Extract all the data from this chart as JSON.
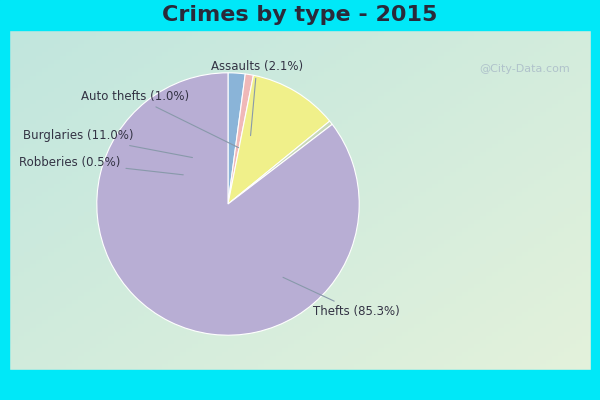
{
  "title": "Crimes by type - 2015",
  "slices": [
    {
      "label": "Thefts",
      "pct": 85.3,
      "color": "#b8aed4"
    },
    {
      "label": "Burglaries",
      "pct": 11.0,
      "color": "#f0f08a"
    },
    {
      "label": "Assaults",
      "pct": 2.1,
      "color": "#8ab4d8"
    },
    {
      "label": "Auto thefts",
      "pct": 1.0,
      "color": "#f0b8b8"
    },
    {
      "label": "Robberies",
      "pct": 0.5,
      "color": "#c8d8b8"
    }
  ],
  "title_fontsize": 16,
  "label_fontsize": 8.5,
  "cyan_bar_color": "#00e8f8",
  "cyan_border_color": "#00e8f8",
  "title_color": "#2a2a3a",
  "watermark": "@City-Data.com",
  "bg_topleft": [
    0.78,
    0.92,
    0.88
  ],
  "bg_bottomright": [
    0.88,
    0.96,
    0.88
  ]
}
